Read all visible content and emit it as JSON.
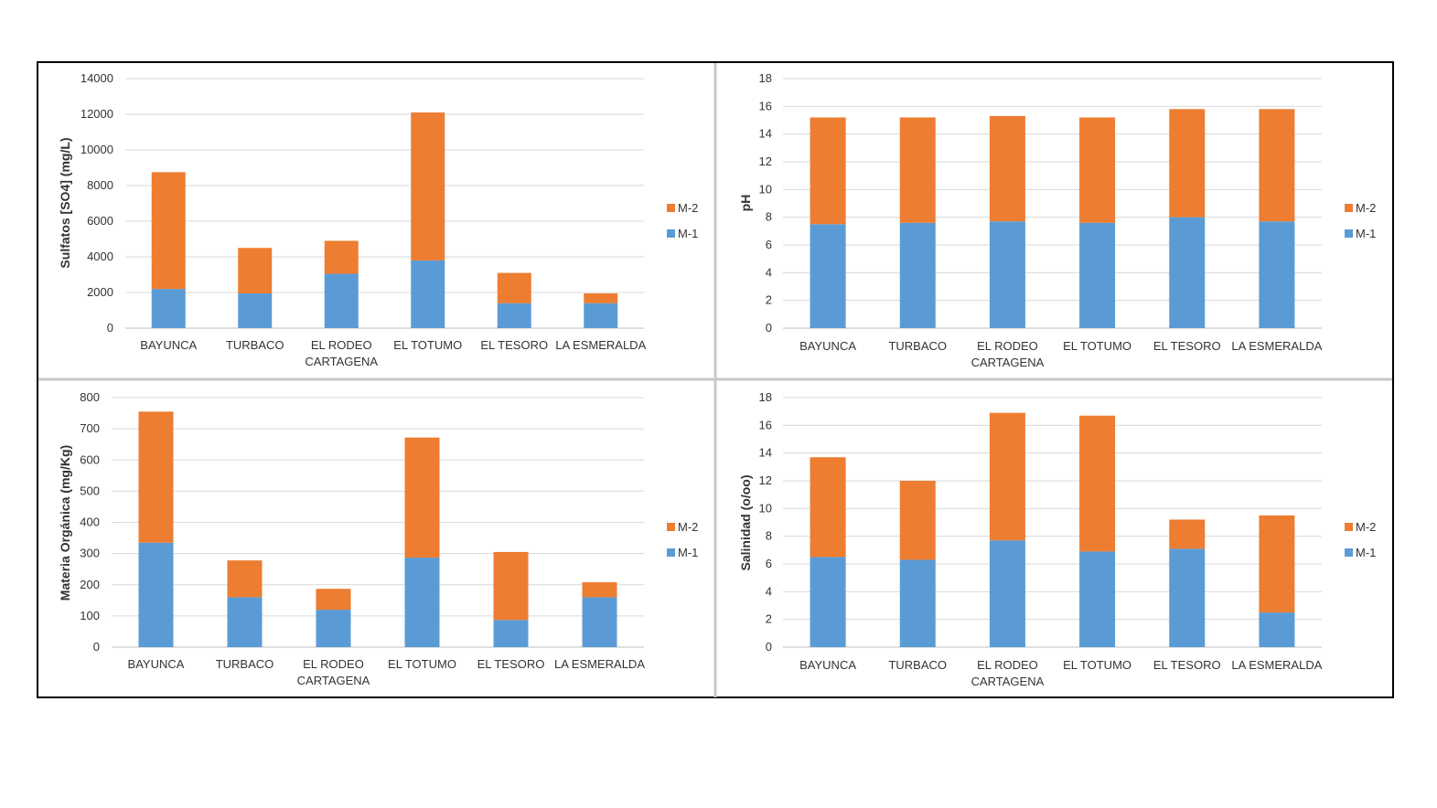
{
  "colors": {
    "M-1": "#5B9BD5",
    "M-2": "#ED7D31",
    "grid": "#D9D9D9",
    "axis": "#BFBFBF",
    "divider": "#C8C8C8"
  },
  "chart_data": [
    {
      "type": "bar",
      "stacked": true,
      "ylabel": "Sulfatos [SO4] (mg/L)",
      "ylim": [
        0,
        14000
      ],
      "yticks": [
        0,
        2000,
        4000,
        6000,
        8000,
        10000,
        12000,
        14000
      ],
      "categories": [
        [
          "BAYUNCA"
        ],
        [
          "TURBACO"
        ],
        [
          "EL RODEO",
          "CARTAGENA"
        ],
        [
          "EL TOTUMO"
        ],
        [
          "EL TESORO"
        ],
        [
          "LA ESMERALDA"
        ]
      ],
      "series": [
        {
          "name": "M-1",
          "values": [
            2200,
            1950,
            3050,
            3800,
            1400,
            1400
          ]
        },
        {
          "name": "M-2",
          "values": [
            6550,
            2550,
            1850,
            8300,
            1700,
            550
          ]
        }
      ],
      "legend_position": "right",
      "grid": true
    },
    {
      "type": "bar",
      "stacked": true,
      "ylabel": "pH",
      "ylim": [
        0,
        18
      ],
      "yticks": [
        0,
        2,
        4,
        6,
        8,
        10,
        12,
        14,
        16,
        18
      ],
      "categories": [
        [
          "BAYUNCA"
        ],
        [
          "TURBACO"
        ],
        [
          "EL RODEO",
          "CARTAGENA"
        ],
        [
          "EL TOTUMO"
        ],
        [
          "EL TESORO"
        ],
        [
          "LA ESMERALDA"
        ]
      ],
      "series": [
        {
          "name": "M-1",
          "values": [
            7.5,
            7.6,
            7.7,
            7.6,
            8.0,
            7.7
          ]
        },
        {
          "name": "M-2",
          "values": [
            7.7,
            7.6,
            7.6,
            7.6,
            7.8,
            8.1
          ]
        }
      ],
      "legend_position": "right",
      "grid": true
    },
    {
      "type": "bar",
      "stacked": true,
      "ylabel": "Materia Orgánica (mg/Kg)",
      "ylim": [
        0,
        800
      ],
      "yticks": [
        0,
        100,
        200,
        300,
        400,
        500,
        600,
        700,
        800
      ],
      "categories": [
        [
          "BAYUNCA"
        ],
        [
          "TURBACO"
        ],
        [
          "EL RODEO",
          "CARTAGENA"
        ],
        [
          "EL TOTUMO"
        ],
        [
          "EL TESORO"
        ],
        [
          "LA ESMERALDA"
        ]
      ],
      "series": [
        {
          "name": "M-1",
          "values": [
            335,
            160,
            120,
            287,
            87,
            160
          ]
        },
        {
          "name": "M-2",
          "values": [
            420,
            118,
            67,
            385,
            218,
            48
          ]
        }
      ],
      "legend_position": "right",
      "grid": true
    },
    {
      "type": "bar",
      "stacked": true,
      "ylabel": "Salinidad (o/oo)",
      "ylim": [
        0,
        18
      ],
      "yticks": [
        0,
        2,
        4,
        6,
        8,
        10,
        12,
        14,
        16,
        18
      ],
      "categories": [
        [
          "BAYUNCA"
        ],
        [
          "TURBACO"
        ],
        [
          "EL RODEO",
          "CARTAGENA"
        ],
        [
          "EL TOTUMO"
        ],
        [
          "EL TESORO"
        ],
        [
          "LA ESMERALDA"
        ]
      ],
      "series": [
        {
          "name": "M-1",
          "values": [
            6.5,
            6.3,
            7.7,
            6.9,
            7.1,
            2.5
          ]
        },
        {
          "name": "M-2",
          "values": [
            7.2,
            5.7,
            9.2,
            9.8,
            2.1,
            7.0
          ]
        }
      ],
      "legend_position": "right",
      "grid": true
    }
  ]
}
